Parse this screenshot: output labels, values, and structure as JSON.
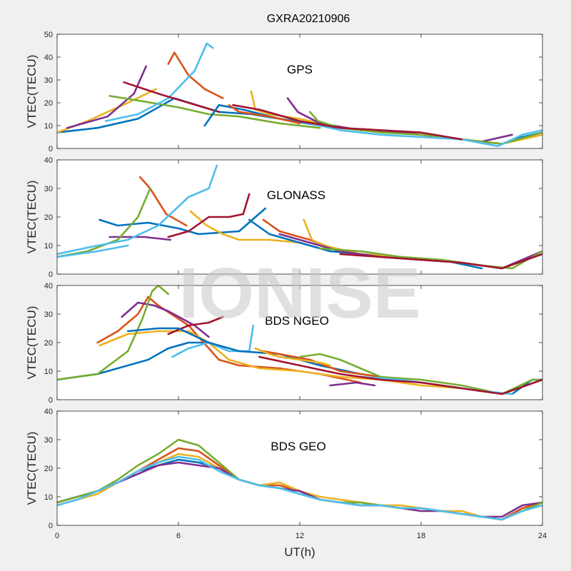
{
  "figure_title": "GXRA20210906",
  "watermark": "IONISE",
  "colors": [
    "#0072bd",
    "#d95319",
    "#edb120",
    "#7e2f8e",
    "#77ac30",
    "#4dbeee",
    "#a2142f"
  ],
  "chart_data": [
    {
      "type": "line",
      "title": "GPS",
      "ylabel": "VTEC(TECU)",
      "xlabel": "",
      "xlim": [
        0,
        24
      ],
      "ylim": [
        0,
        50
      ],
      "yticks": [
        0,
        10,
        20,
        30,
        40,
        50
      ],
      "xticks": [
        0,
        6,
        12,
        18,
        24
      ],
      "grid": false,
      "series": [
        {
          "x": [
            0,
            2,
            4,
            5.8,
            8,
            9.6,
            11,
            13,
            15,
            17,
            19,
            21,
            22,
            23,
            24
          ],
          "y": [
            7,
            9,
            13,
            22,
            16,
            15,
            13,
            10,
            8,
            7,
            5,
            3,
            2,
            5,
            7
          ]
        },
        {
          "x": [
            5.5,
            5.8,
            6.5,
            7.3,
            8.2
          ],
          "y": [
            37,
            42,
            32,
            26,
            22
          ]
        },
        {
          "x": [
            0,
            1.5,
            3.5,
            4.9
          ],
          "y": [
            7,
            12,
            20,
            26
          ]
        },
        {
          "x": [
            0.5,
            2.5,
            3.8,
            4.4
          ],
          "y": [
            9,
            14,
            24,
            36
          ]
        },
        {
          "x": [
            2.6,
            4,
            6,
            7.5,
            9,
            11,
            13
          ],
          "y": [
            23,
            21,
            18,
            15,
            14,
            11,
            9
          ]
        },
        {
          "x": [
            2.4,
            4,
            5.5,
            6.8,
            7.4,
            7.7
          ],
          "y": [
            12,
            15,
            22,
            34,
            46,
            44
          ]
        },
        {
          "x": [
            3.3,
            5,
            6.5,
            8
          ],
          "y": [
            29,
            24,
            20,
            16
          ]
        },
        {
          "x": [
            7.3,
            8,
            9.2,
            11,
            12.5
          ],
          "y": [
            10,
            19,
            17,
            13,
            11
          ]
        },
        {
          "x": [
            8.5,
            9,
            10.5,
            12
          ],
          "y": [
            19,
            16,
            14,
            11
          ]
        },
        {
          "x": [
            9.6,
            9.8,
            10.5,
            12,
            14,
            16,
            18,
            20,
            22,
            24
          ],
          "y": [
            25,
            17,
            15,
            13,
            9,
            8,
            6,
            4,
            2,
            6
          ]
        },
        {
          "x": [
            11.4,
            11.9,
            13,
            15,
            17,
            19,
            21,
            22.5
          ],
          "y": [
            22,
            16,
            11,
            8,
            7,
            5,
            3,
            6
          ]
        },
        {
          "x": [
            12.5,
            12.9,
            14,
            16,
            18,
            20,
            22,
            24
          ],
          "y": [
            16,
            12,
            9,
            7,
            6,
            4,
            2,
            7
          ]
        },
        {
          "x": [
            10,
            12,
            14,
            16,
            18,
            20,
            21.8,
            23,
            24
          ],
          "y": [
            17,
            12,
            8,
            6,
            5,
            4,
            1,
            6,
            8
          ]
        },
        {
          "x": [
            8.7,
            10,
            12,
            14,
            16,
            18,
            20
          ],
          "y": [
            19,
            17,
            12,
            9,
            8,
            7,
            4
          ]
        }
      ]
    },
    {
      "type": "line",
      "title": "GLONASS",
      "ylabel": "VTEC(TECU)",
      "xlabel": "",
      "xlim": [
        0,
        24
      ],
      "ylim": [
        0,
        40
      ],
      "yticks": [
        0,
        10,
        20,
        30,
        40
      ],
      "xticks": [
        0,
        6,
        12,
        18,
        24
      ],
      "grid": false,
      "series": [
        {
          "x": [
            2.1,
            3,
            4.5,
            6,
            7,
            9,
            10.3
          ],
          "y": [
            19,
            17,
            18,
            16,
            14,
            15,
            23
          ]
        },
        {
          "x": [
            4.1,
            4.6,
            5.4,
            6.4
          ],
          "y": [
            34,
            30,
            21,
            17
          ]
        },
        {
          "x": [
            6.6,
            7.4,
            8.2,
            9,
            10.5,
            12,
            13.5
          ],
          "y": [
            22,
            17,
            14,
            12,
            12,
            11,
            8
          ]
        },
        {
          "x": [
            2.6,
            4.3,
            5.6
          ],
          "y": [
            13,
            13,
            12
          ]
        },
        {
          "x": [
            0,
            1.5,
            3,
            4,
            4.6
          ],
          "y": [
            6,
            8,
            12,
            20,
            30
          ]
        },
        {
          "x": [
            0,
            2,
            3.5,
            5,
            6.5,
            7.5,
            7.9
          ],
          "y": [
            7,
            10,
            12,
            17,
            27,
            30,
            38
          ]
        },
        {
          "x": [
            5.5,
            6.5,
            7.5,
            8.5,
            9.2,
            9.5
          ],
          "y": [
            13,
            15,
            20,
            20,
            21,
            28
          ]
        },
        {
          "x": [
            9.5,
            10.5,
            12,
            13.5,
            15,
            17,
            19,
            21
          ],
          "y": [
            19,
            14,
            11,
            8,
            7,
            6,
            5,
            2
          ]
        },
        {
          "x": [
            10.2,
            11,
            12.5,
            14,
            16,
            18,
            20,
            22
          ],
          "y": [
            19,
            15,
            12,
            8,
            6,
            5,
            4,
            2
          ]
        },
        {
          "x": [
            12.2,
            12.6,
            13.2,
            15,
            17,
            19,
            21,
            22.5
          ],
          "y": [
            19,
            12,
            10,
            7,
            6,
            5,
            3,
            2
          ]
        },
        {
          "x": [
            11,
            12.5,
            14,
            16,
            18,
            20,
            22,
            24
          ],
          "y": [
            14,
            11,
            8,
            6,
            5,
            4,
            2,
            8
          ]
        },
        {
          "x": [
            13,
            15,
            17,
            19,
            21,
            22.5,
            23.5,
            24
          ],
          "y": [
            9,
            8,
            6,
            5,
            3,
            2,
            6,
            8
          ]
        },
        {
          "x": [
            0,
            2,
            3.5
          ],
          "y": [
            6,
            8,
            10
          ]
        },
        {
          "x": [
            14,
            16,
            18,
            20,
            22,
            24
          ],
          "y": [
            7,
            6,
            5,
            4,
            2,
            7
          ]
        }
      ]
    },
    {
      "type": "line",
      "title": "BDS NGEO",
      "ylabel": "VTEC(TECU)",
      "xlabel": "",
      "xlim": [
        0,
        24
      ],
      "ylim": [
        0,
        40
      ],
      "yticks": [
        0,
        10,
        20,
        30,
        40
      ],
      "xticks": [
        0,
        6,
        12,
        18,
        24
      ],
      "grid": false,
      "series": [
        {
          "x": [
            0,
            2,
            3.5,
            4.5,
            5.5,
            6.5,
            7.5
          ],
          "y": [
            7,
            9,
            12,
            14,
            18,
            20,
            20
          ]
        },
        {
          "x": [
            2,
            3,
            4,
            4.5,
            5,
            6.5,
            7,
            8,
            9,
            11,
            13,
            15
          ],
          "y": [
            20,
            24,
            30,
            36,
            33,
            26,
            22,
            14,
            12,
            11,
            9,
            6
          ]
        },
        {
          "x": [
            2.1,
            3.5,
            5,
            6.5,
            7.5,
            8.5,
            10,
            12,
            14,
            16,
            18,
            20,
            22,
            24
          ],
          "y": [
            19,
            23,
            24,
            24,
            20,
            14,
            11,
            10,
            8,
            7,
            5,
            4,
            2,
            7
          ]
        },
        {
          "x": [
            3.2,
            4,
            4.8,
            5.5,
            6.8,
            7.5
          ],
          "y": [
            29,
            34,
            33,
            31,
            26,
            22
          ]
        },
        {
          "x": [
            0,
            2,
            3.5,
            4.2,
            4.7,
            5,
            5.5
          ],
          "y": [
            7,
            9,
            17,
            28,
            38,
            40,
            37
          ]
        },
        {
          "x": [
            5.7,
            6.5,
            7.5,
            8.5,
            9.5,
            9.7
          ],
          "y": [
            15,
            18,
            20,
            17,
            17,
            26
          ]
        },
        {
          "x": [
            5.5,
            6.5,
            7.5,
            8.2
          ],
          "y": [
            23,
            26,
            27,
            29
          ]
        },
        {
          "x": [
            3.5,
            5,
            6,
            7.5,
            9,
            11,
            13,
            15,
            17,
            19,
            21,
            22.5,
            23.5,
            24
          ],
          "y": [
            24,
            25,
            25,
            20,
            17,
            16,
            12,
            9,
            7,
            5,
            3,
            2,
            7,
            7
          ]
        },
        {
          "x": [
            10.2,
            11,
            12.5,
            14,
            16,
            18,
            20
          ],
          "y": [
            17,
            16,
            14,
            10,
            8,
            6,
            4
          ]
        },
        {
          "x": [
            9.8,
            10.5,
            11,
            13,
            13.5
          ],
          "y": [
            18,
            16,
            15,
            13,
            12
          ]
        },
        {
          "x": [
            13.5,
            14.8,
            15.7
          ],
          "y": [
            5,
            6,
            5
          ]
        },
        {
          "x": [
            12,
            13,
            14,
            16,
            18,
            20,
            22,
            23.5,
            24
          ],
          "y": [
            15,
            16,
            14,
            8,
            7,
            5,
            2,
            7,
            7
          ]
        },
        {
          "x": [
            15,
            17,
            19,
            21,
            22.5
          ],
          "y": [
            8,
            7,
            5,
            3,
            2
          ]
        },
        {
          "x": [
            10,
            12,
            14,
            16,
            18,
            20,
            22,
            24
          ],
          "y": [
            15,
            12,
            9,
            7,
            6,
            4,
            2,
            7
          ]
        }
      ]
    },
    {
      "type": "line",
      "title": "BDS GEO",
      "ylabel": "VTEC(TECU)",
      "xlabel": "UT(h)",
      "xlim": [
        0,
        24
      ],
      "ylim": [
        0,
        40
      ],
      "yticks": [
        0,
        10,
        20,
        30,
        40
      ],
      "xticks": [
        0,
        6,
        12,
        18,
        24
      ],
      "xtick_labels": [
        "0",
        "6",
        "12",
        "18",
        "24"
      ],
      "grid": false,
      "series": [
        {
          "x": [
            0,
            1,
            2,
            3,
            4,
            5,
            6,
            7,
            8,
            9,
            10,
            11,
            12,
            13,
            14,
            15,
            16,
            17,
            18,
            19,
            20,
            21,
            22,
            23,
            24
          ],
          "y": [
            8,
            10,
            12,
            15,
            19,
            21,
            23,
            22,
            20,
            16,
            14,
            13,
            11,
            9,
            8,
            7,
            7,
            6,
            6,
            5,
            4,
            3,
            2,
            6,
            8
          ]
        },
        {
          "x": [
            0,
            1,
            2,
            3,
            4,
            5,
            6,
            7,
            8,
            9,
            10,
            11,
            12,
            13,
            14,
            15,
            16,
            17,
            18,
            19,
            20,
            21,
            22,
            23,
            24
          ],
          "y": [
            8,
            10,
            12,
            15,
            19,
            23,
            27,
            26,
            21,
            16,
            14,
            14,
            12,
            9,
            8,
            8,
            7,
            6,
            6,
            5,
            4,
            3,
            2,
            6,
            8
          ]
        },
        {
          "x": [
            0,
            1,
            2,
            3,
            4,
            5,
            6,
            7,
            8,
            9,
            10,
            11,
            12,
            13,
            14,
            15,
            16,
            17,
            18,
            19,
            20,
            21,
            22,
            23,
            24
          ],
          "y": [
            7,
            9,
            11,
            15,
            19,
            22,
            25,
            24,
            20,
            16,
            14,
            15,
            12,
            10,
            9,
            8,
            7,
            7,
            6,
            5,
            5,
            3,
            2,
            5,
            8
          ]
        },
        {
          "x": [
            0,
            1,
            2,
            3,
            4,
            5,
            6,
            7,
            8,
            9,
            10,
            11,
            12,
            13,
            14,
            15,
            16,
            17,
            18,
            19,
            20,
            21,
            22,
            23,
            24
          ],
          "y": [
            8,
            10,
            12,
            15,
            18,
            21,
            22,
            21,
            20,
            16,
            14,
            13,
            12,
            9,
            8,
            7,
            7,
            6,
            5,
            5,
            4,
            3,
            3,
            7,
            8
          ]
        },
        {
          "x": [
            0,
            1,
            2,
            3,
            4,
            5,
            6,
            7,
            8,
            9,
            10,
            11,
            12,
            13,
            14,
            15,
            16,
            17,
            18,
            19,
            20,
            21,
            22,
            23,
            24
          ],
          "y": [
            8,
            10,
            12,
            16,
            21,
            25,
            30,
            28,
            22,
            16,
            14,
            13,
            11,
            9,
            8,
            8,
            7,
            6,
            6,
            5,
            4,
            3,
            2,
            5,
            8
          ]
        },
        {
          "x": [
            0,
            1,
            2,
            3,
            4,
            5,
            6,
            7,
            8,
            9,
            10,
            11,
            12,
            13,
            14,
            15,
            16,
            17,
            18,
            19,
            20,
            21,
            22,
            23,
            24
          ],
          "y": [
            7,
            9,
            12,
            15,
            19,
            22,
            24,
            23,
            19,
            16,
            14,
            13,
            11,
            9,
            8,
            7,
            7,
            6,
            6,
            5,
            4,
            3,
            2,
            5,
            7
          ]
        }
      ]
    }
  ]
}
